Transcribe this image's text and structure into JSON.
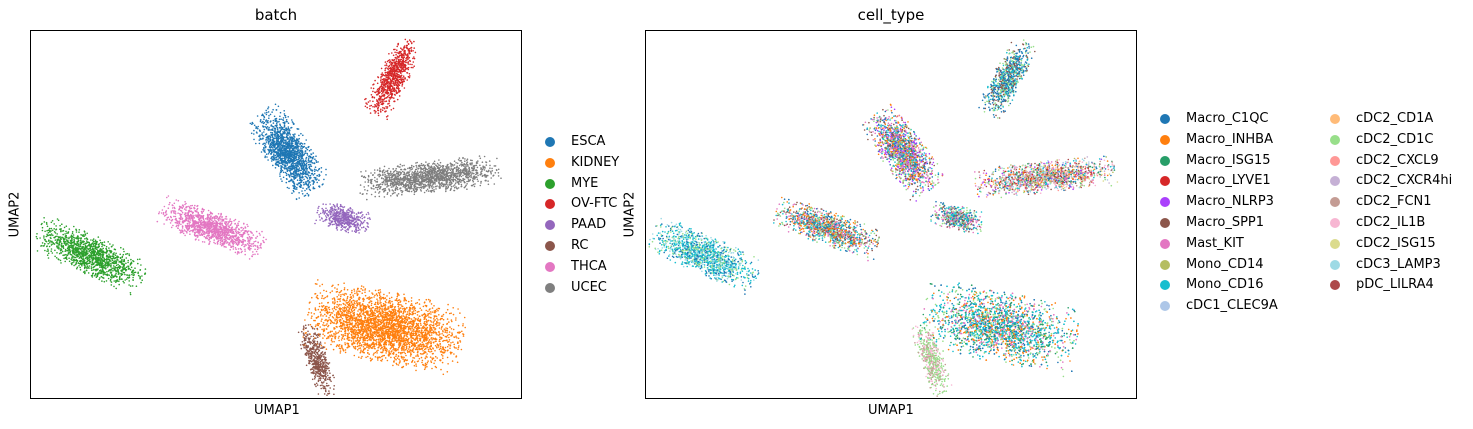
{
  "figure": {
    "panels": [
      {
        "title": "batch",
        "xlabel": "UMAP1",
        "ylabel": "UMAP2"
      },
      {
        "title": "cell_type",
        "xlabel": "UMAP1",
        "ylabel": "UMAP2"
      }
    ]
  },
  "chart_data": [
    {
      "type": "scatter",
      "title": "batch",
      "xlabel": "UMAP1",
      "ylabel": "UMAP2",
      "xticks": [],
      "yticks": [],
      "grid": false,
      "legend_position": "right-outside",
      "series": [
        {
          "name": "ESCA",
          "color": "#1f77b4"
        },
        {
          "name": "KIDNEY",
          "color": "#ff7f0e"
        },
        {
          "name": "MYE",
          "color": "#2ca02c"
        },
        {
          "name": "OV-FTC",
          "color": "#d62728"
        },
        {
          "name": "PAAD",
          "color": "#9467bd"
        },
        {
          "name": "RC",
          "color": "#8c564b"
        },
        {
          "name": "THCA",
          "color": "#e377c2"
        },
        {
          "name": "UCEC",
          "color": "#7f7f7f"
        }
      ]
    },
    {
      "type": "scatter",
      "title": "cell_type",
      "xlabel": "UMAP1",
      "ylabel": "UMAP2",
      "xticks": [],
      "yticks": [],
      "grid": false,
      "legend_position": "right-outside",
      "series": [
        {
          "name": "Macro_C1QC",
          "color": "#1f77b4"
        },
        {
          "name": "Macro_INHBA",
          "color": "#ff7f0e"
        },
        {
          "name": "Macro_ISG15",
          "color": "#279e68"
        },
        {
          "name": "Macro_LYVE1",
          "color": "#d62728"
        },
        {
          "name": "Macro_NLRP3",
          "color": "#aa40fc"
        },
        {
          "name": "Macro_SPP1",
          "color": "#8c564b"
        },
        {
          "name": "Mast_KIT",
          "color": "#e377c2"
        },
        {
          "name": "Mono_CD14",
          "color": "#b5bd61"
        },
        {
          "name": "Mono_CD16",
          "color": "#17becf"
        },
        {
          "name": "cDC1_CLEC9A",
          "color": "#aec7e8"
        },
        {
          "name": "cDC2_CD1A",
          "color": "#ffbb78"
        },
        {
          "name": "cDC2_CD1C",
          "color": "#98df8a"
        },
        {
          "name": "cDC2_CXCL9",
          "color": "#ff9896"
        },
        {
          "name": "cDC2_CXCR4hi",
          "color": "#c5b0d5"
        },
        {
          "name": "cDC2_FCN1",
          "color": "#c49c94"
        },
        {
          "name": "cDC2_IL1B",
          "color": "#f7b6d2"
        },
        {
          "name": "cDC2_ISG15",
          "color": "#dbdb8d"
        },
        {
          "name": "cDC3_LAMP3",
          "color": "#9edae5"
        },
        {
          "name": "pDC_LILRA4",
          "color": "#ad494a"
        }
      ]
    }
  ]
}
